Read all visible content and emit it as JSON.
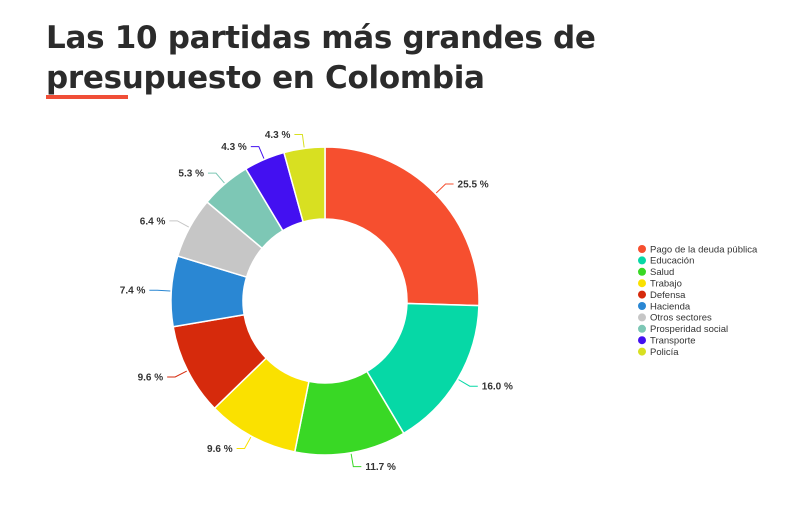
{
  "title": "Las 10 partidas más grandes de presupuesto en Colombia",
  "colors": {
    "accent_underline": "#f04e37",
    "title_text": "#2b2b2b"
  },
  "chart_data": {
    "type": "pie",
    "variant": "donut",
    "title": "Las 10 partidas más grandes de presupuesto en Colombia",
    "legend_position": "right",
    "value_suffix": " %",
    "slices": [
      {
        "label": "Pago de la deuda pública",
        "value": 25.5,
        "color": "#f64f2f"
      },
      {
        "label": "Educación",
        "value": 16.0,
        "color": "#06d8a6"
      },
      {
        "label": "Salud",
        "value": 11.7,
        "color": "#39d825"
      },
      {
        "label": "Trabajo",
        "value": 9.6,
        "color": "#fae100"
      },
      {
        "label": "Defensa",
        "value": 9.6,
        "color": "#d62a0c"
      },
      {
        "label": "Hacienda",
        "value": 7.4,
        "color": "#2a87d3"
      },
      {
        "label": "Otros sectores",
        "value": 6.4,
        "color": "#c6c6c6"
      },
      {
        "label": "Prosperidad social",
        "value": 5.3,
        "color": "#7dc7b5"
      },
      {
        "label": "Transporte",
        "value": 4.3,
        "color": "#4310f1"
      },
      {
        "label": "Policía",
        "value": 4.3,
        "color": "#d8e021"
      }
    ]
  }
}
